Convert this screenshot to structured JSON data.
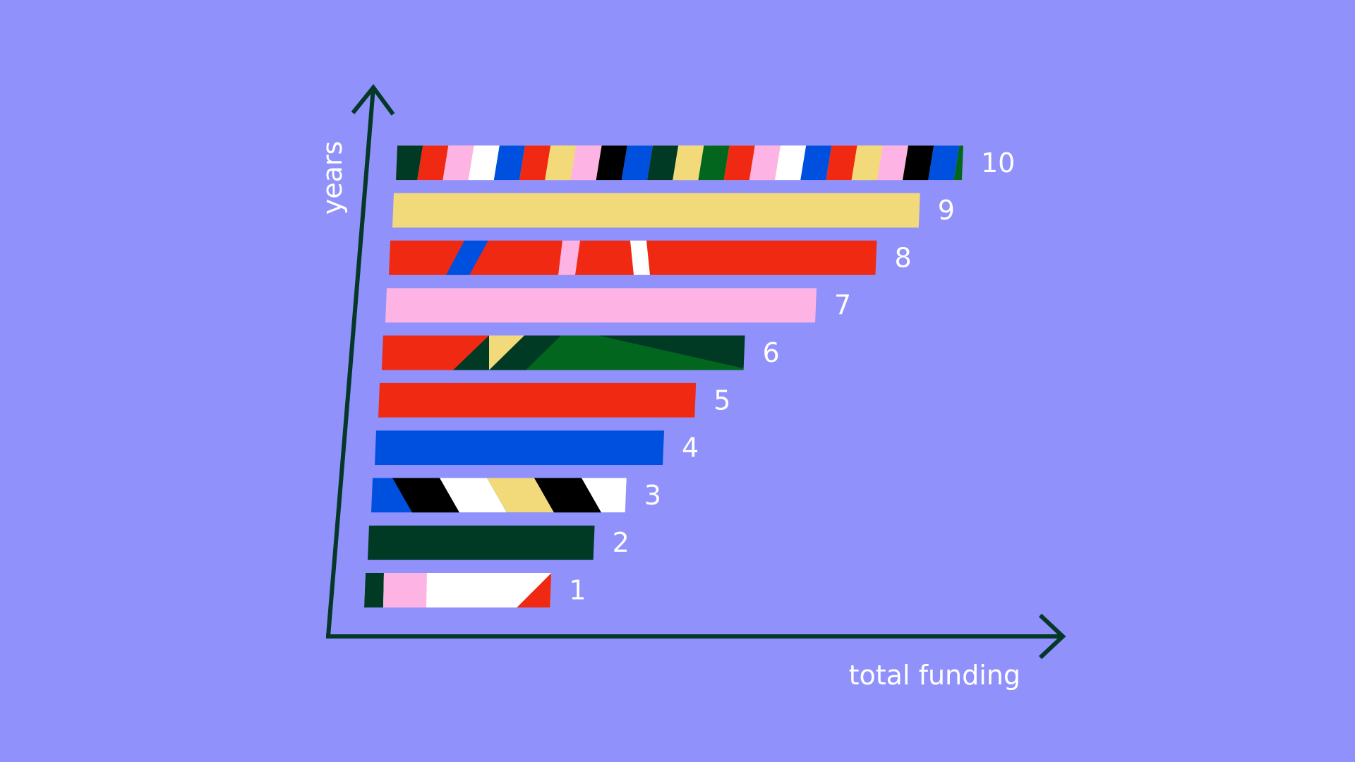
{
  "chart_data": {
    "type": "bar",
    "orientation": "horizontal",
    "xlabel": "total funding",
    "ylabel": "years",
    "categories": [
      "1",
      "2",
      "3",
      "4",
      "5",
      "6",
      "7",
      "8",
      "9",
      "10"
    ],
    "values": [
      33,
      40,
      45,
      51,
      56,
      64,
      76,
      86,
      93,
      100
    ],
    "grid": false,
    "ticks": false,
    "legend": "none"
  },
  "colors": {
    "background": "#9191fc",
    "axis": "#06382a",
    "label": "#ffffff",
    "red": "#f02a12",
    "blue": "#0050e0",
    "pink": "#fdb4e4",
    "yellow": "#f2da7a",
    "dark_green": "#003a25",
    "green": "#02661e",
    "black": "#000000",
    "white": "#ffffff"
  }
}
